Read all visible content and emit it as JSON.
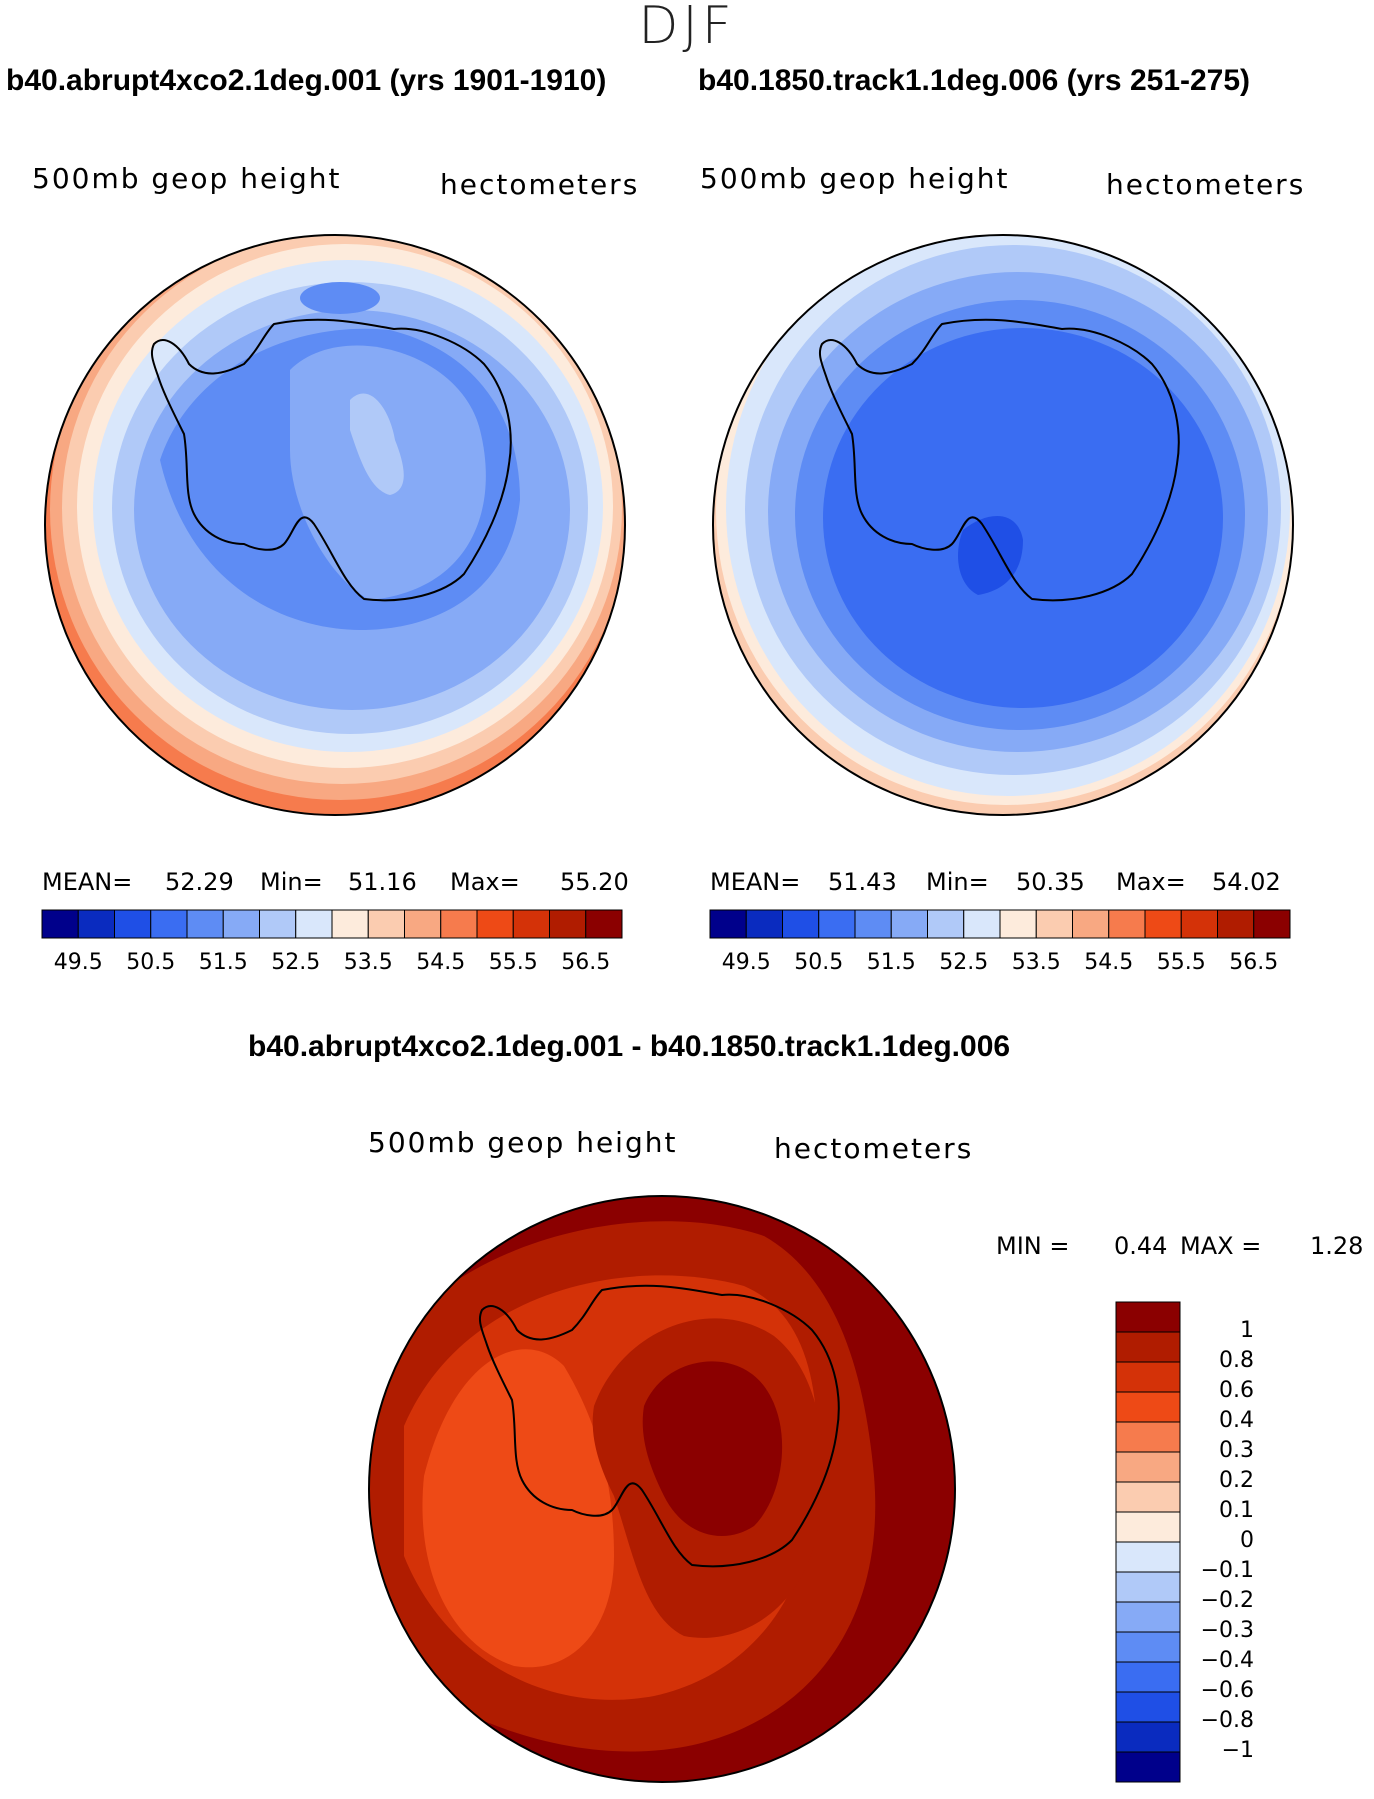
{
  "season": "DJF",
  "panels": [
    {
      "title": "b40.abrupt4xco2.1deg.001 (yrs 1901-1910)",
      "variable": "500mb geop height",
      "units": "hectometers",
      "stats": {
        "mean_label": "MEAN=",
        "mean": "52.29",
        "min_label": "Min=",
        "min": "51.16",
        "max_label": "Max=",
        "max": "55.20"
      }
    },
    {
      "title": "b40.1850.track1.1deg.006 (yrs 251-275)",
      "variable": "500mb geop height",
      "units": "hectometers",
      "stats": {
        "mean_label": "MEAN=",
        "mean": "51.43",
        "min_label": "Min=",
        "min": "50.35",
        "max_label": "Max=",
        "max": "54.02"
      }
    },
    {
      "title": "b40.abrupt4xco2.1deg.001 - b40.1850.track1.1deg.006",
      "variable": "500mb geop height",
      "units": "hectometers",
      "stats": {
        "min_label": "MIN =",
        "min": "0.44",
        "max_label": "MAX =",
        "max": "1.28"
      }
    }
  ],
  "chart_data": [
    {
      "type": "heatmap",
      "title": "b40.abrupt4xco2.1deg.001 (yrs 1901-1910)",
      "projection": "south polar stereographic",
      "field": "500mb geop height",
      "units": "hectometers",
      "mean": 52.29,
      "min": 51.16,
      "max": 55.2,
      "contour_levels": [
        49.5,
        50,
        50.5,
        51,
        51.5,
        52,
        52.5,
        53,
        53.5,
        54,
        54.5,
        55,
        55.5,
        56,
        56.5
      ],
      "colorbar_tick_labels": [
        "49.5",
        "50.5",
        "51.5",
        "52.5",
        "53.5",
        "54.5",
        "55.5",
        "56.5"
      ]
    },
    {
      "type": "heatmap",
      "title": "b40.1850.track1.1deg.006 (yrs 251-275)",
      "projection": "south polar stereographic",
      "field": "500mb geop height",
      "units": "hectometers",
      "mean": 51.43,
      "min": 50.35,
      "max": 54.02,
      "contour_levels": [
        49.5,
        50,
        50.5,
        51,
        51.5,
        52,
        52.5,
        53,
        53.5,
        54,
        54.5,
        55,
        55.5,
        56,
        56.5
      ],
      "colorbar_tick_labels": [
        "49.5",
        "50.5",
        "51.5",
        "52.5",
        "53.5",
        "54.5",
        "55.5",
        "56.5"
      ]
    },
    {
      "type": "heatmap",
      "title": "b40.abrupt4xco2.1deg.001 - b40.1850.track1.1deg.006",
      "projection": "south polar stereographic",
      "field": "500mb geop height",
      "units": "hectometers",
      "min": 0.44,
      "max": 1.28,
      "contour_levels": [
        -1,
        -0.8,
        -0.6,
        -0.4,
        -0.3,
        -0.2,
        -0.1,
        0,
        0.1,
        0.2,
        0.3,
        0.4,
        0.6,
        0.8,
        1
      ],
      "colorbar_tick_labels": [
        "1",
        "0.8",
        "0.6",
        "0.4",
        "0.3",
        "0.2",
        "0.1",
        "0",
        "−0.1",
        "−0.2",
        "−0.3",
        "−0.4",
        "−0.6",
        "−0.8",
        "−1"
      ]
    }
  ],
  "colors": {
    "scale": [
      "#00008b",
      "#0a2bbf",
      "#1f4fe6",
      "#3a6df2",
      "#5e8cf4",
      "#86aaf6",
      "#b0c9f8",
      "#d9e7fb",
      "#fdebdc",
      "#fbccb0",
      "#f8a882",
      "#f67b4d",
      "#ee4a16",
      "#d43208",
      "#b01c00",
      "#8b0000"
    ],
    "coast": "#000000"
  }
}
